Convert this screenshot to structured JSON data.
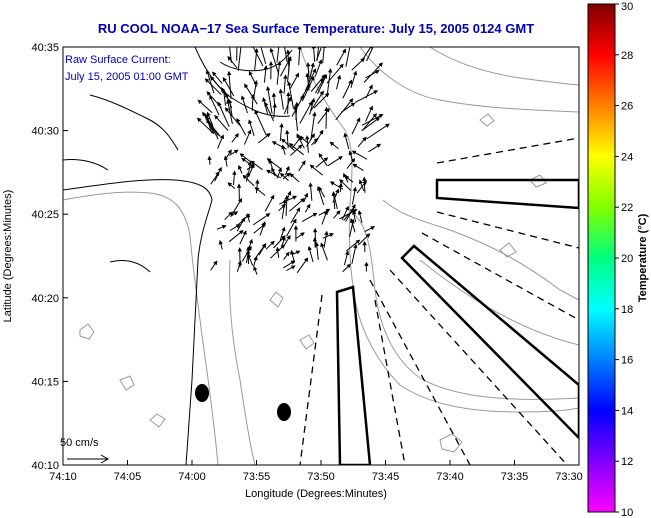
{
  "chart_data": {
    "type": "map",
    "title": "RU COOL  NOAA−17  Sea Surface Temperature:  July 15, 2005 0124 GMT",
    "annotation_lines": [
      "Raw Surface Current:",
      "July 15, 2005 01:00 GMT"
    ],
    "xlabel": "Longitude (Degrees:Minutes)",
    "ylabel": "Latitude (Degrees:Minutes)",
    "x_tick_labels": [
      "74:10",
      "74:05",
      "74:00",
      "73:55",
      "73:50",
      "73:45",
      "73:40",
      "73:35",
      "73:30"
    ],
    "y_tick_labels": [
      "40:10",
      "40:15",
      "40:20",
      "40:25",
      "40:30",
      "40:35"
    ],
    "xlim_minutes_west": [
      4450,
      4410
    ],
    "ylim_minutes_north": [
      2410,
      2435
    ],
    "scale_vector_label": "50 cm/s",
    "colorbar": {
      "label": "Temperature (°C)",
      "min": 10,
      "max": 30,
      "tick_labels": [
        "10",
        "12",
        "14",
        "16",
        "18",
        "20",
        "22",
        "24",
        "26",
        "28",
        "30"
      ],
      "colors": [
        "#ff00ff",
        "#8000ff",
        "#0000ff",
        "#0080ff",
        "#00ffff",
        "#00ff80",
        "#80ff00",
        "#ffff00",
        "#ff8000",
        "#ff0000",
        "#800000"
      ]
    },
    "grid": false
  }
}
